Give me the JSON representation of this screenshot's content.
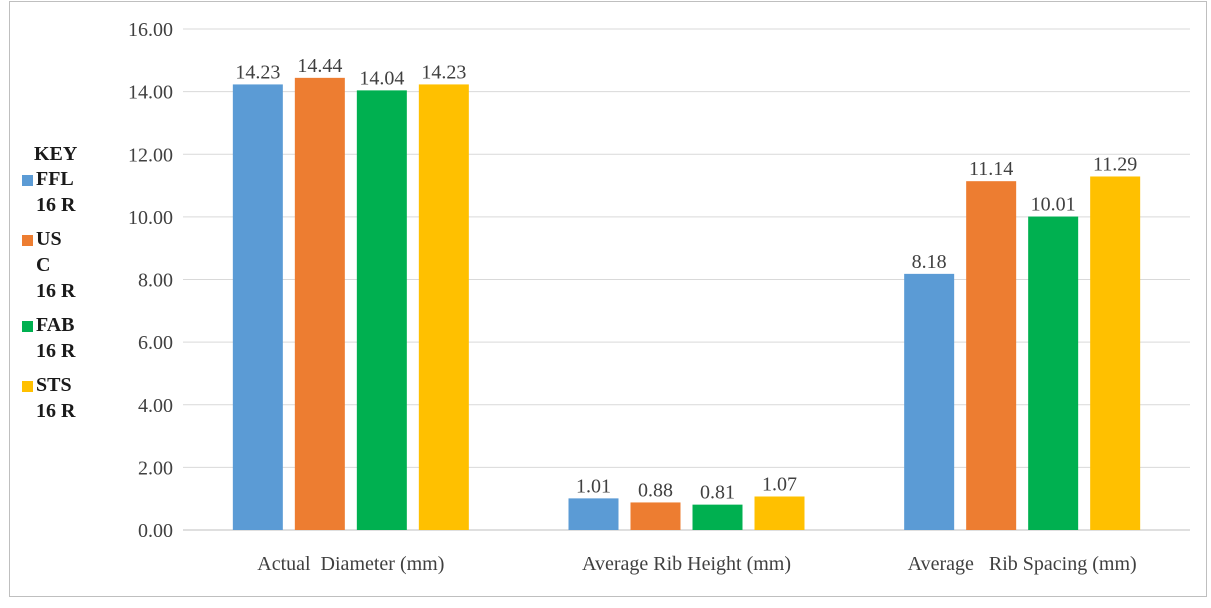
{
  "chart_data": {
    "type": "bar",
    "categories": [
      "Actual  Diameter (mm)",
      "Average Rib Height (mm)",
      "Average   Rib Spacing (mm)"
    ],
    "series": [
      {
        "name": "FFL 16 R",
        "color": "#5b9bd5",
        "values": [
          14.23,
          1.01,
          8.18
        ]
      },
      {
        "name": "USC 16 R",
        "color": "#ed7d31",
        "values": [
          14.44,
          0.88,
          11.14
        ]
      },
      {
        "name": "FAB 16 R",
        "color": "#00b050",
        "values": [
          14.04,
          0.81,
          10.01
        ]
      },
      {
        "name": "STS 16 R",
        "color": "#ffc000",
        "values": [
          14.23,
          1.07,
          11.29
        ]
      }
    ],
    "data_labels": [
      [
        "14.23",
        "1.01",
        "8.18"
      ],
      [
        "14.44",
        "0.88",
        "11.14"
      ],
      [
        "14.04",
        "0.81",
        "10.01"
      ],
      [
        "14.23",
        "1.07",
        "11.29"
      ]
    ],
    "ylim": [
      0,
      16
    ],
    "yticks": [
      "0.00",
      "2.00",
      "4.00",
      "6.00",
      "8.00",
      "10.00",
      "12.00",
      "14.00",
      "16.00"
    ],
    "grid": true,
    "legend_placement": "left",
    "legend_title": "KEY",
    "legend_labels": [
      "FFL\n16 R",
      "US\nC\n16 R",
      "FAB\n16 R",
      "STS\n16 R"
    ]
  }
}
